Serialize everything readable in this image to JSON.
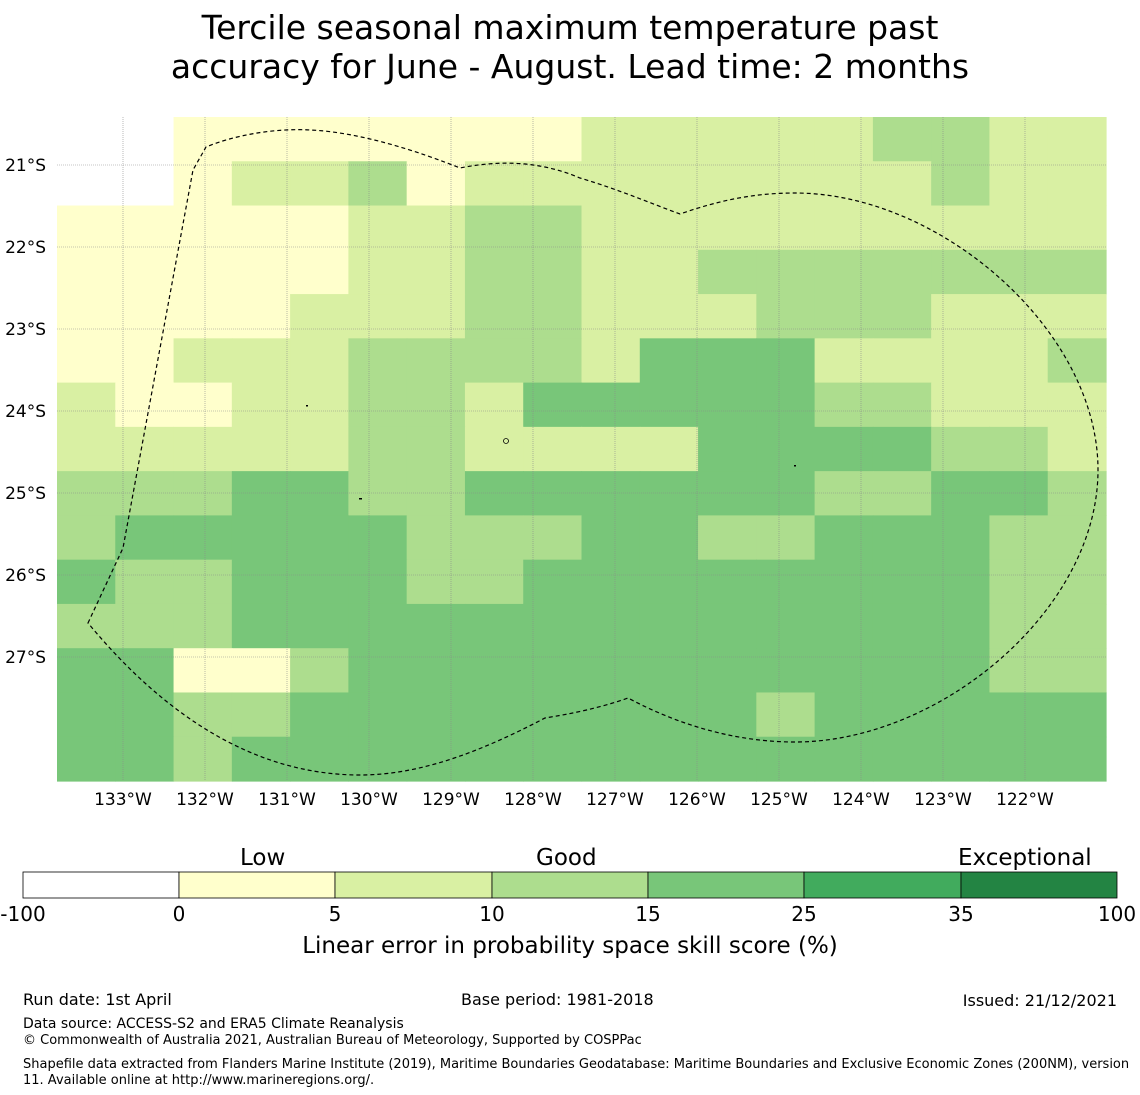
{
  "title": {
    "line1": "Tercile seasonal maximum temperature past",
    "line2": "accuracy for June - August. Lead time: 2 months"
  },
  "map": {
    "lat_labels": [
      "21°S",
      "22°S",
      "23°S",
      "24°S",
      "25°S",
      "26°S",
      "27°S"
    ],
    "lon_labels": [
      "133°W",
      "132°W",
      "131°W",
      "130°W",
      "129°W",
      "128°W",
      "127°W",
      "126°W",
      "125°W",
      "124°W",
      "123°W",
      "122°W"
    ],
    "grid_lines": true,
    "boundary_style": "dashed",
    "class_grid": [
      [
        0,
        0,
        1,
        1,
        1,
        1,
        1,
        1,
        1,
        2,
        2,
        2,
        2,
        2,
        3,
        3,
        2,
        2
      ],
      [
        0,
        0,
        1,
        2,
        2,
        3,
        1,
        2,
        2,
        2,
        2,
        2,
        2,
        2,
        2,
        3,
        2,
        2
      ],
      [
        1,
        1,
        1,
        1,
        1,
        2,
        2,
        3,
        3,
        2,
        2,
        2,
        2,
        2,
        2,
        2,
        2,
        2
      ],
      [
        1,
        1,
        1,
        1,
        1,
        2,
        2,
        3,
        3,
        2,
        2,
        3,
        3,
        3,
        3,
        3,
        3,
        3
      ],
      [
        1,
        1,
        1,
        1,
        2,
        2,
        2,
        3,
        3,
        2,
        2,
        2,
        3,
        3,
        3,
        2,
        2,
        2
      ],
      [
        1,
        1,
        2,
        2,
        2,
        3,
        3,
        3,
        3,
        2,
        4,
        4,
        4,
        2,
        2,
        2,
        2,
        3
      ],
      [
        2,
        1,
        1,
        2,
        2,
        3,
        3,
        2,
        4,
        4,
        4,
        4,
        4,
        3,
        3,
        2,
        2,
        2
      ],
      [
        2,
        2,
        2,
        2,
        2,
        3,
        3,
        2,
        2,
        2,
        2,
        4,
        4,
        4,
        4,
        3,
        3,
        2
      ],
      [
        3,
        3,
        3,
        4,
        4,
        3,
        3,
        4,
        4,
        4,
        4,
        4,
        4,
        3,
        3,
        4,
        4,
        3
      ],
      [
        3,
        4,
        4,
        4,
        4,
        4,
        3,
        3,
        3,
        4,
        4,
        3,
        3,
        4,
        4,
        4,
        3,
        3
      ],
      [
        4,
        3,
        3,
        4,
        4,
        4,
        3,
        3,
        4,
        4,
        4,
        4,
        4,
        4,
        4,
        4,
        3,
        3
      ],
      [
        3,
        3,
        3,
        4,
        4,
        4,
        4,
        4,
        4,
        4,
        4,
        4,
        4,
        4,
        4,
        4,
        3,
        3
      ],
      [
        4,
        4,
        1,
        1,
        3,
        4,
        4,
        4,
        4,
        4,
        4,
        4,
        4,
        4,
        4,
        4,
        3,
        3
      ],
      [
        4,
        4,
        3,
        3,
        4,
        4,
        4,
        4,
        4,
        4,
        4,
        4,
        3,
        4,
        4,
        4,
        4,
        4
      ],
      [
        4,
        4,
        3,
        4,
        4,
        4,
        4,
        4,
        4,
        4,
        4,
        4,
        4,
        4,
        4,
        4,
        4,
        4
      ]
    ]
  },
  "colorbar": {
    "categories": [
      "Low",
      "Good",
      "Exceptional"
    ],
    "ticks": [
      "-100",
      "0",
      "5",
      "10",
      "15",
      "25",
      "35",
      "100"
    ],
    "colors": [
      "#ffffff",
      "#ffffcc",
      "#d9f0a3",
      "#addd8e",
      "#78c679",
      "#41ab5d",
      "#238443"
    ],
    "label": "Linear error in probability space skill score (%)"
  },
  "footer": {
    "run_date": "Run date: 1st April",
    "base_period": "Base period: 1981-2018",
    "issued": "Issued: 21/12/2021",
    "data_source": "Data source: ACCESS-S2 and ERA5 Climate Reanalysis",
    "copyright": "© Commonwealth of Australia 2021, Australian Bureau of Meteorology, Supported by COSPPac",
    "shapefile": "Shapefile data extracted from Flanders Marine Institute (2019), Maritime Boundaries Geodatabase: Maritime Boundaries and Exclusive Economic Zones (200NM), version 11. Available online at http://www.marineregions.org/."
  }
}
